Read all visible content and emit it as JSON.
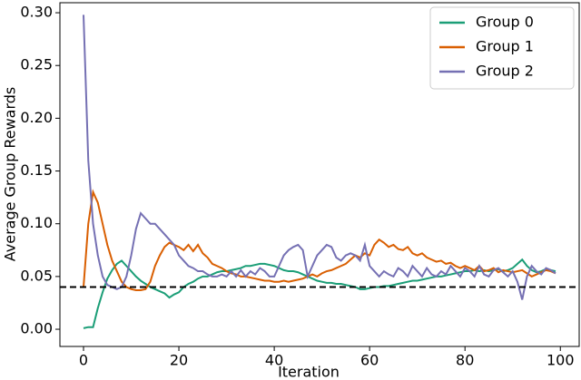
{
  "chart_data": {
    "type": "line",
    "xlabel": "Iteration",
    "ylabel": "Average Group Rewards",
    "x": [
      0,
      1,
      2,
      3,
      4,
      5,
      6,
      7,
      8,
      9,
      10,
      11,
      12,
      13,
      14,
      15,
      16,
      17,
      18,
      19,
      20,
      21,
      22,
      23,
      24,
      25,
      26,
      27,
      28,
      29,
      30,
      31,
      32,
      33,
      34,
      35,
      36,
      37,
      38,
      39,
      40,
      41,
      42,
      43,
      44,
      45,
      46,
      47,
      48,
      49,
      50,
      51,
      52,
      53,
      54,
      55,
      56,
      57,
      58,
      59,
      60,
      61,
      62,
      63,
      64,
      65,
      66,
      67,
      68,
      69,
      70,
      71,
      72,
      73,
      74,
      75,
      76,
      77,
      78,
      79,
      80,
      81,
      82,
      83,
      84,
      85,
      86,
      87,
      88,
      89,
      90,
      91,
      92,
      93,
      94,
      95,
      96,
      97,
      98,
      99
    ],
    "series": [
      {
        "name": "Group 0",
        "color": "#1b9e77",
        "values": [
          0.001,
          0.002,
          0.002,
          0.02,
          0.035,
          0.048,
          0.056,
          0.062,
          0.065,
          0.06,
          0.055,
          0.05,
          0.046,
          0.043,
          0.04,
          0.038,
          0.036,
          0.034,
          0.03,
          0.033,
          0.035,
          0.04,
          0.043,
          0.045,
          0.048,
          0.05,
          0.05,
          0.052,
          0.054,
          0.055,
          0.055,
          0.056,
          0.057,
          0.058,
          0.06,
          0.06,
          0.061,
          0.062,
          0.062,
          0.061,
          0.06,
          0.058,
          0.056,
          0.055,
          0.055,
          0.054,
          0.052,
          0.05,
          0.048,
          0.046,
          0.045,
          0.044,
          0.044,
          0.043,
          0.043,
          0.042,
          0.041,
          0.04,
          0.038,
          0.038,
          0.039,
          0.04,
          0.04,
          0.041,
          0.041,
          0.042,
          0.043,
          0.044,
          0.045,
          0.046,
          0.046,
          0.047,
          0.048,
          0.049,
          0.05,
          0.05,
          0.051,
          0.052,
          0.053,
          0.054,
          0.055,
          0.055,
          0.056,
          0.055,
          0.056,
          0.055,
          0.056,
          0.057,
          0.055,
          0.056,
          0.058,
          0.062,
          0.066,
          0.06,
          0.056,
          0.054,
          0.055,
          0.057,
          0.056,
          0.055
        ]
      },
      {
        "name": "Group 1",
        "color": "#d95f02",
        "values": [
          0.04,
          0.1,
          0.13,
          0.12,
          0.1,
          0.08,
          0.065,
          0.055,
          0.045,
          0.04,
          0.038,
          0.037,
          0.037,
          0.038,
          0.045,
          0.06,
          0.07,
          0.078,
          0.082,
          0.08,
          0.078,
          0.075,
          0.08,
          0.074,
          0.08,
          0.072,
          0.068,
          0.062,
          0.06,
          0.058,
          0.055,
          0.053,
          0.052,
          0.05,
          0.05,
          0.049,
          0.048,
          0.047,
          0.046,
          0.046,
          0.045,
          0.045,
          0.046,
          0.045,
          0.046,
          0.047,
          0.048,
          0.05,
          0.052,
          0.05,
          0.053,
          0.055,
          0.056,
          0.058,
          0.06,
          0.062,
          0.066,
          0.07,
          0.068,
          0.072,
          0.07,
          0.08,
          0.085,
          0.082,
          0.078,
          0.08,
          0.076,
          0.075,
          0.078,
          0.072,
          0.07,
          0.072,
          0.068,
          0.066,
          0.064,
          0.065,
          0.062,
          0.063,
          0.06,
          0.058,
          0.06,
          0.058,
          0.056,
          0.06,
          0.055,
          0.056,
          0.058,
          0.054,
          0.056,
          0.055,
          0.054,
          0.055,
          0.056,
          0.053,
          0.05,
          0.052,
          0.054,
          0.056,
          0.055,
          0.053
        ]
      },
      {
        "name": "Group 2",
        "color": "#7570b3",
        "values": [
          0.298,
          0.16,
          0.1,
          0.07,
          0.05,
          0.042,
          0.04,
          0.038,
          0.04,
          0.05,
          0.07,
          0.095,
          0.11,
          0.105,
          0.1,
          0.1,
          0.095,
          0.09,
          0.085,
          0.08,
          0.07,
          0.065,
          0.06,
          0.058,
          0.055,
          0.055,
          0.052,
          0.05,
          0.05,
          0.052,
          0.05,
          0.055,
          0.05,
          0.056,
          0.05,
          0.055,
          0.052,
          0.058,
          0.055,
          0.05,
          0.05,
          0.06,
          0.07,
          0.075,
          0.078,
          0.08,
          0.075,
          0.05,
          0.06,
          0.07,
          0.075,
          0.08,
          0.078,
          0.068,
          0.065,
          0.07,
          0.072,
          0.07,
          0.065,
          0.08,
          0.06,
          0.055,
          0.05,
          0.055,
          0.052,
          0.05,
          0.058,
          0.055,
          0.05,
          0.06,
          0.055,
          0.05,
          0.058,
          0.052,
          0.05,
          0.055,
          0.052,
          0.06,
          0.055,
          0.05,
          0.058,
          0.055,
          0.05,
          0.06,
          0.052,
          0.05,
          0.056,
          0.058,
          0.054,
          0.05,
          0.055,
          0.045,
          0.028,
          0.05,
          0.06,
          0.055,
          0.052,
          0.058,
          0.056,
          0.053
        ]
      }
    ],
    "hline": {
      "value": 0.04,
      "color": "#000000"
    },
    "xlim": [
      -4.95,
      103.95
    ],
    "xticks": [
      0,
      20,
      40,
      60,
      80,
      100
    ],
    "ylim": [
      -0.0163,
      0.3095
    ],
    "yticks": [
      {
        "value": 0,
        "label": "0.00"
      },
      {
        "value": 0.05,
        "label": "0.05"
      },
      {
        "value": 0.1,
        "label": "0.10"
      },
      {
        "value": 0.15,
        "label": "0.15"
      },
      {
        "value": 0.2,
        "label": "0.20"
      },
      {
        "value": 0.25,
        "label": "0.25"
      },
      {
        "value": 0.3,
        "label": "0.30"
      }
    ],
    "legend": "upper right"
  }
}
